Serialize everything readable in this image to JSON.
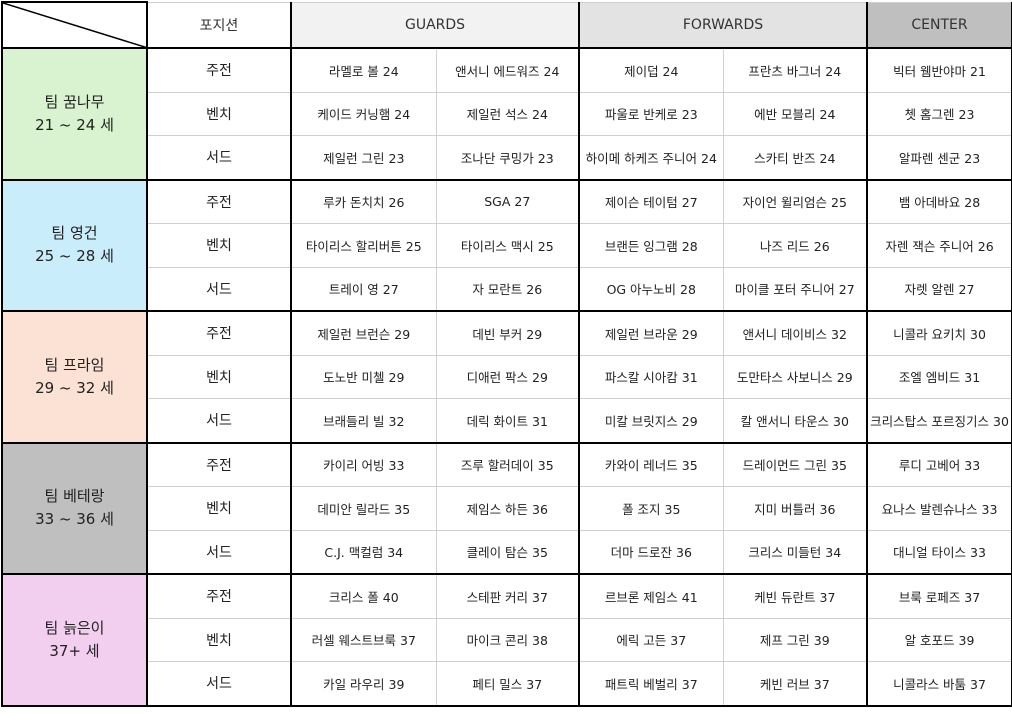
{
  "header": {
    "position": "포지션",
    "groups": [
      "GUARDS",
      "FORWARDS",
      "CENTER"
    ]
  },
  "teams": [
    {
      "name": "팀 꿈나무",
      "ages": "21 ~ 24 세",
      "rows": [
        {
          "position": "주전",
          "players": [
            "라멜로 볼 24",
            "앤서니 에드워즈 24",
            "제이덥 24",
            "프란츠 바그너 24",
            "빅터 웸반야마 21"
          ]
        },
        {
          "position": "벤치",
          "players": [
            "케이드 커닝햄 24",
            "제일런 석스 24",
            "파울로 반케로 23",
            "에반 모블리 24",
            "쳇 홈그렌 23"
          ]
        },
        {
          "position": "서드",
          "players": [
            "제일런 그린 23",
            "조나단 쿠밍가 23",
            "하이메 하케즈 주니어 24",
            "스카티 반즈 24",
            "알파렌 센군 23"
          ]
        }
      ]
    },
    {
      "name": "팀 영건",
      "ages": "25 ~ 28 세",
      "rows": [
        {
          "position": "주전",
          "players": [
            "루카 돈치치 26",
            "SGA 27",
            "제이슨 테이텀 27",
            "자이언 윌리엄슨 25",
            "뱀 아데바요 28"
          ]
        },
        {
          "position": "벤치",
          "players": [
            "타이리스 할리버튼 25",
            "타이리스 맥시 25",
            "브랜든 잉그램 28",
            "나즈 리드 26",
            "자렌 잭슨 주니어 26"
          ]
        },
        {
          "position": "서드",
          "players": [
            "트레이 영 27",
            "자 모란트 26",
            "OG 아누노비 28",
            "마이클 포터 주니어 27",
            "자렛 알렌 27"
          ]
        }
      ]
    },
    {
      "name": "팀 프라임",
      "ages": "29 ~ 32 세",
      "rows": [
        {
          "position": "주전",
          "players": [
            "제일런 브런슨 29",
            "데빈 부커 29",
            "제일런 브라운 29",
            "앤서니 데이비스 32",
            "니콜라 요키치 30"
          ]
        },
        {
          "position": "벤치",
          "players": [
            "도노반 미첼 29",
            "디애런 팍스 29",
            "파스칼 시아캄 31",
            "도만타스 사보니스 29",
            "조엘 엠비드 31"
          ]
        },
        {
          "position": "서드",
          "players": [
            "브래들리 빌 32",
            "데릭 화이트 31",
            "미칼 브릿지스 29",
            "칼 앤서니 타운스 30",
            "크리스탑스 포르징기스 30"
          ]
        }
      ]
    },
    {
      "name": "팀 베테랑",
      "ages": "33 ~ 36 세",
      "rows": [
        {
          "position": "주전",
          "players": [
            "카이리 어빙 33",
            "즈루 할러데이 35",
            "카와이 레너드 35",
            "드레이먼드 그린 35",
            "루디 고베어 33"
          ]
        },
        {
          "position": "벤치",
          "players": [
            "데미안 릴라드 35",
            "제임스 하든 36",
            "폴 조지 35",
            "지미 버틀러 36",
            "요나스 발렌슈나스 33"
          ]
        },
        {
          "position": "서드",
          "players": [
            "C.J. 맥컬럼 34",
            "클레이 탐슨 35",
            "더마 드로잔 36",
            "크리스 미들턴 34",
            "대니얼 타이스 33"
          ]
        }
      ]
    },
    {
      "name": "팀 늙은이",
      "ages": "37+ 세",
      "rows": [
        {
          "position": "주전",
          "players": [
            "크리스 폴 40",
            "스테판 커리 37",
            "르브론 제임스 41",
            "케빈 듀란트 37",
            "브룩 로페즈 37"
          ]
        },
        {
          "position": "벤치",
          "players": [
            "러셀 웨스트브룩 37",
            "마이크 콘리 38",
            "에릭 고든 37",
            "제프 그린 39",
            "알 호포드 39"
          ]
        },
        {
          "position": "서드",
          "players": [
            "카일 라우리 39",
            "페티 밀스 37",
            "패트릭 베벌리 37",
            "케빈 러브 37",
            "니콜라스 바툼 37"
          ]
        }
      ]
    }
  ]
}
